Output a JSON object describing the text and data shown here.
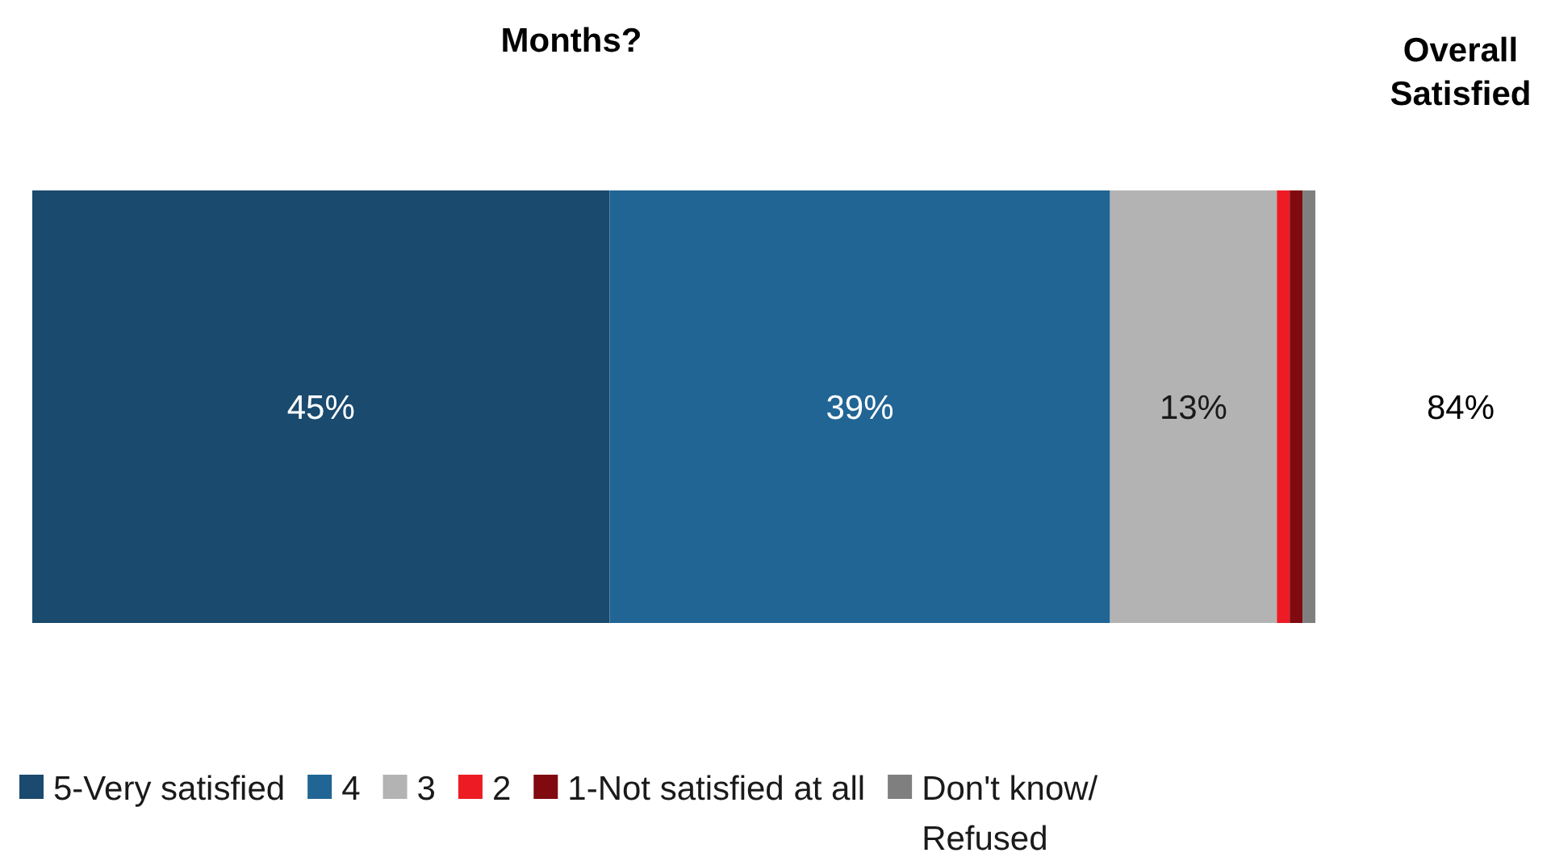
{
  "chart_data": {
    "type": "bar",
    "orientation": "horizontal",
    "stacked": true,
    "title": "Months?",
    "categories": [
      null
    ],
    "series": [
      {
        "name": "5-Very satisfied",
        "color": "#1a4a6e",
        "values": [
          45
        ],
        "value_labels": [
          "45%"
        ]
      },
      {
        "name": "4",
        "color": "#216595",
        "values": [
          39
        ],
        "value_labels": [
          "39%"
        ]
      },
      {
        "name": "3",
        "color": "#b3b3b3",
        "values": [
          13
        ],
        "value_labels": [
          "13%"
        ]
      },
      {
        "name": "2",
        "color": "#ed1c24",
        "values": [
          1
        ],
        "value_labels": [
          null
        ]
      },
      {
        "name": "1-Not satisfied at all",
        "color": "#800a10",
        "values": [
          1
        ],
        "value_labels": [
          null
        ]
      },
      {
        "name": "Don't know/ Refused",
        "color": "#7f7f7f",
        "values": [
          1
        ],
        "value_labels": [
          null
        ]
      }
    ],
    "annotations": [
      "Overall Satisfied",
      "84%"
    ],
    "legend": "bottom"
  }
}
